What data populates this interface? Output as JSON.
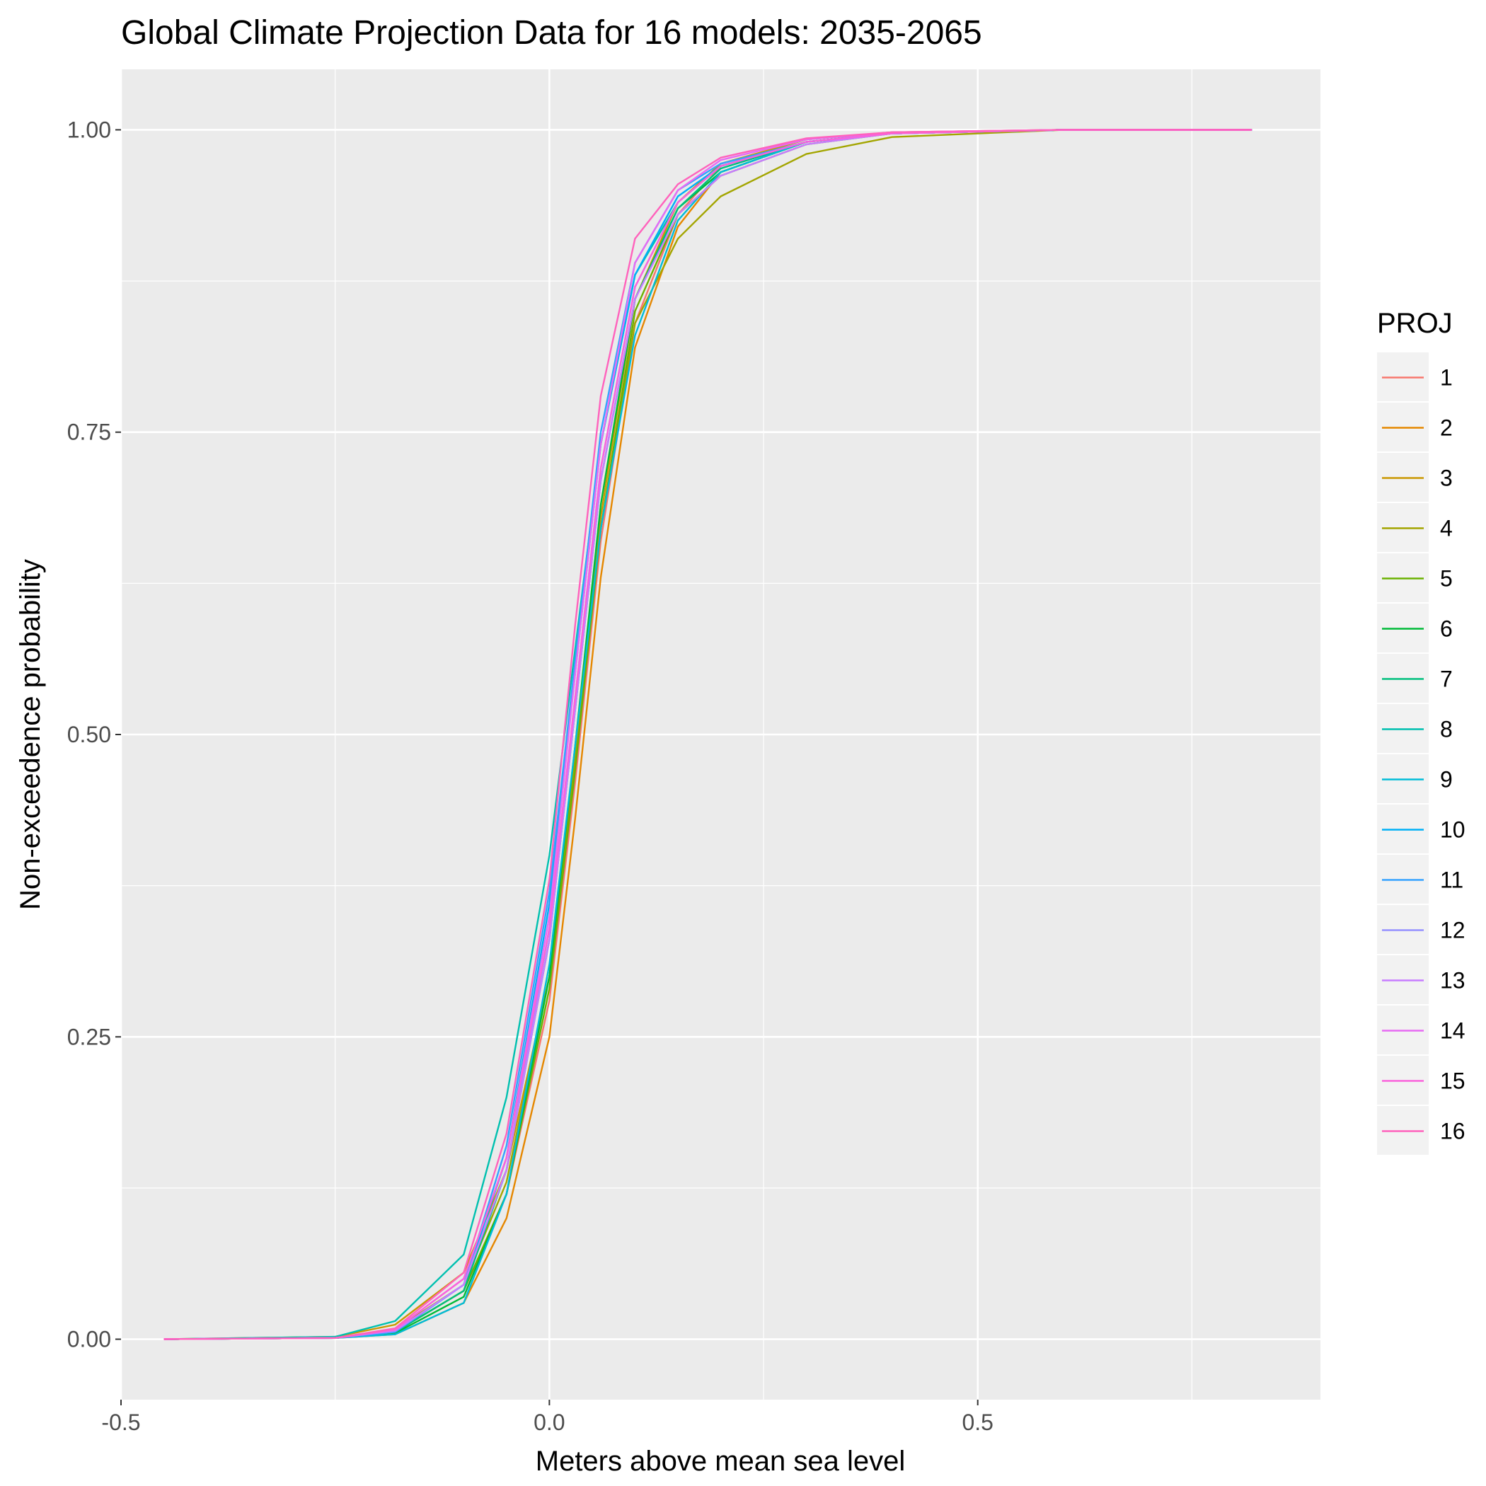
{
  "chart_data": {
    "type": "line",
    "title": "Global Climate Projection Data for 16 models: 2035-2065",
    "xlabel": "Meters above mean sea level",
    "ylabel": "Non-exceedence probability",
    "xlim": [
      -0.5,
      0.9
    ],
    "ylim": [
      -0.05,
      1.05
    ],
    "x_ticks": [
      -0.5,
      0.0,
      0.5
    ],
    "x_tick_labels": [
      "-0.5",
      "0.0",
      "0.5"
    ],
    "y_ticks": [
      0.0,
      0.25,
      0.5,
      0.75,
      1.0
    ],
    "y_tick_labels": [
      "0.00",
      "0.25",
      "0.50",
      "0.75",
      "1.00"
    ],
    "grid": true,
    "legend": {
      "title": "PROJ",
      "placement": "right"
    },
    "series": [
      {
        "name": "1",
        "color": "#F8766D",
        "x": [
          -0.45,
          -0.25,
          -0.18,
          -0.1,
          -0.05,
          0.0,
          0.03,
          0.06,
          0.1,
          0.15,
          0.2,
          0.3,
          0.4,
          0.6,
          0.82
        ],
        "y": [
          0.0,
          0.001,
          0.006,
          0.04,
          0.12,
          0.28,
          0.46,
          0.66,
          0.84,
          0.93,
          0.97,
          0.99,
          0.997,
          1.0,
          1.0
        ]
      },
      {
        "name": "2",
        "color": "#E58700",
        "x": [
          -0.45,
          -0.25,
          -0.18,
          -0.1,
          -0.05,
          0.0,
          0.03,
          0.06,
          0.1,
          0.15,
          0.2,
          0.3,
          0.4,
          0.6,
          0.82
        ],
        "y": [
          0.0,
          0.001,
          0.004,
          0.03,
          0.1,
          0.25,
          0.43,
          0.63,
          0.82,
          0.92,
          0.965,
          0.99,
          0.997,
          1.0,
          1.0
        ]
      },
      {
        "name": "3",
        "color": "#C99800",
        "x": [
          -0.45,
          -0.25,
          -0.18,
          -0.1,
          -0.05,
          0.0,
          0.03,
          0.06,
          0.1,
          0.15,
          0.2,
          0.3,
          0.4,
          0.6,
          0.82
        ],
        "y": [
          0.0,
          0.002,
          0.012,
          0.055,
          0.14,
          0.3,
          0.48,
          0.68,
          0.86,
          0.94,
          0.972,
          0.992,
          0.998,
          1.0,
          1.0
        ]
      },
      {
        "name": "4",
        "color": "#A3A500",
        "x": [
          -0.45,
          -0.25,
          -0.18,
          -0.1,
          -0.05,
          0.0,
          0.03,
          0.06,
          0.1,
          0.15,
          0.2,
          0.3,
          0.4,
          0.6,
          0.82
        ],
        "y": [
          0.0,
          0.001,
          0.008,
          0.045,
          0.13,
          0.3,
          0.48,
          0.67,
          0.84,
          0.91,
          0.945,
          0.98,
          0.994,
          1.0,
          1.0
        ]
      },
      {
        "name": "5",
        "color": "#6BB100",
        "x": [
          -0.45,
          -0.25,
          -0.18,
          -0.1,
          -0.05,
          0.0,
          0.03,
          0.06,
          0.1,
          0.15,
          0.2,
          0.3,
          0.4,
          0.6,
          0.82
        ],
        "y": [
          0.0,
          0.001,
          0.006,
          0.04,
          0.12,
          0.29,
          0.47,
          0.67,
          0.85,
          0.93,
          0.962,
          0.988,
          0.997,
          1.0,
          1.0
        ]
      },
      {
        "name": "6",
        "color": "#00BA38",
        "x": [
          -0.45,
          -0.25,
          -0.18,
          -0.1,
          -0.05,
          0.0,
          0.03,
          0.06,
          0.1,
          0.15,
          0.2,
          0.3,
          0.4,
          0.6,
          0.82
        ],
        "y": [
          0.0,
          0.001,
          0.005,
          0.035,
          0.12,
          0.3,
          0.49,
          0.69,
          0.86,
          0.935,
          0.965,
          0.99,
          0.997,
          1.0,
          1.0
        ]
      },
      {
        "name": "7",
        "color": "#00BF7D",
        "x": [
          -0.45,
          -0.25,
          -0.18,
          -0.1,
          -0.05,
          0.0,
          0.03,
          0.06,
          0.1,
          0.15,
          0.2,
          0.3,
          0.4,
          0.6,
          0.82
        ],
        "y": [
          0.0,
          0.001,
          0.006,
          0.04,
          0.14,
          0.33,
          0.52,
          0.71,
          0.86,
          0.935,
          0.968,
          0.99,
          0.997,
          1.0,
          1.0
        ]
      },
      {
        "name": "8",
        "color": "#00C0AF",
        "x": [
          -0.45,
          -0.25,
          -0.18,
          -0.1,
          -0.05,
          0.0,
          0.03,
          0.06,
          0.1,
          0.15,
          0.2,
          0.3,
          0.4,
          0.6,
          0.82
        ],
        "y": [
          0.0,
          0.002,
          0.015,
          0.07,
          0.2,
          0.4,
          0.57,
          0.74,
          0.88,
          0.94,
          0.97,
          0.99,
          0.997,
          1.0,
          1.0
        ]
      },
      {
        "name": "9",
        "color": "#00BCD8",
        "x": [
          -0.45,
          -0.25,
          -0.18,
          -0.1,
          -0.05,
          0.0,
          0.03,
          0.06,
          0.1,
          0.15,
          0.2,
          0.3,
          0.4,
          0.6,
          0.82
        ],
        "y": [
          0.0,
          0.001,
          0.004,
          0.03,
          0.12,
          0.31,
          0.49,
          0.67,
          0.83,
          0.925,
          0.965,
          0.99,
          0.997,
          1.0,
          1.0
        ]
      },
      {
        "name": "10",
        "color": "#00B0F6",
        "x": [
          -0.45,
          -0.25,
          -0.18,
          -0.1,
          -0.05,
          0.0,
          0.03,
          0.06,
          0.1,
          0.15,
          0.2,
          0.3,
          0.4,
          0.6,
          0.82
        ],
        "y": [
          0.0,
          0.001,
          0.006,
          0.045,
          0.15,
          0.36,
          0.55,
          0.74,
          0.88,
          0.945,
          0.97,
          0.99,
          0.997,
          1.0,
          1.0
        ]
      },
      {
        "name": "11",
        "color": "#35A2FF",
        "x": [
          -0.45,
          -0.25,
          -0.18,
          -0.1,
          -0.05,
          0.0,
          0.03,
          0.06,
          0.1,
          0.15,
          0.2,
          0.3,
          0.4,
          0.6,
          0.82
        ],
        "y": [
          0.0,
          0.001,
          0.006,
          0.045,
          0.16,
          0.37,
          0.56,
          0.75,
          0.89,
          0.95,
          0.972,
          0.99,
          0.997,
          1.0,
          1.0
        ]
      },
      {
        "name": "12",
        "color": "#9590FF",
        "x": [
          -0.45,
          -0.25,
          -0.18,
          -0.1,
          -0.05,
          0.0,
          0.03,
          0.06,
          0.1,
          0.15,
          0.2,
          0.3,
          0.4,
          0.6,
          0.82
        ],
        "y": [
          0.0,
          0.001,
          0.007,
          0.045,
          0.14,
          0.34,
          0.53,
          0.72,
          0.87,
          0.94,
          0.97,
          0.99,
          0.997,
          1.0,
          1.0
        ]
      },
      {
        "name": "13",
        "color": "#C77CFF",
        "x": [
          -0.45,
          -0.25,
          -0.18,
          -0.1,
          -0.05,
          0.0,
          0.03,
          0.06,
          0.1,
          0.15,
          0.2,
          0.3,
          0.4,
          0.6,
          0.82
        ],
        "y": [
          0.0,
          0.001,
          0.007,
          0.045,
          0.14,
          0.33,
          0.52,
          0.71,
          0.86,
          0.93,
          0.962,
          0.988,
          0.997,
          1.0,
          1.0
        ]
      },
      {
        "name": "14",
        "color": "#E76BF3",
        "x": [
          -0.45,
          -0.25,
          -0.18,
          -0.1,
          -0.05,
          0.0,
          0.03,
          0.06,
          0.1,
          0.15,
          0.2,
          0.3,
          0.4,
          0.6,
          0.82
        ],
        "y": [
          0.0,
          0.001,
          0.008,
          0.05,
          0.15,
          0.35,
          0.55,
          0.74,
          0.89,
          0.95,
          0.975,
          0.992,
          0.998,
          1.0,
          1.0
        ]
      },
      {
        "name": "15",
        "color": "#FA62DB",
        "x": [
          -0.45,
          -0.25,
          -0.18,
          -0.1,
          -0.05,
          0.0,
          0.03,
          0.06,
          0.1,
          0.15,
          0.2,
          0.3,
          0.4,
          0.6,
          0.82
        ],
        "y": [
          0.0,
          0.001,
          0.008,
          0.05,
          0.15,
          0.34,
          0.53,
          0.72,
          0.87,
          0.94,
          0.97,
          0.99,
          0.997,
          1.0,
          1.0
        ]
      },
      {
        "name": "16",
        "color": "#FF62BC",
        "x": [
          -0.45,
          -0.25,
          -0.18,
          -0.1,
          -0.05,
          0.0,
          0.03,
          0.06,
          0.1,
          0.15,
          0.2,
          0.3,
          0.4,
          0.6,
          0.82
        ],
        "y": [
          0.0,
          0.001,
          0.009,
          0.055,
          0.17,
          0.38,
          0.59,
          0.78,
          0.91,
          0.955,
          0.977,
          0.993,
          0.998,
          1.0,
          1.0
        ]
      }
    ]
  }
}
